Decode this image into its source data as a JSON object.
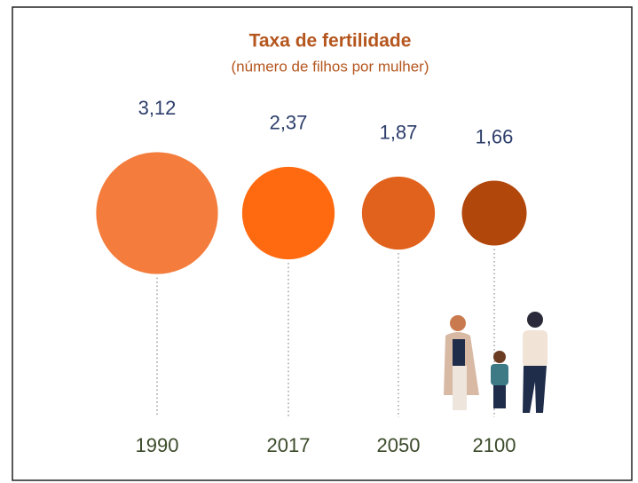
{
  "chart_data": {
    "type": "bubble",
    "title": "Taxa de fertilidade",
    "subtitle": "(número de filhos por mulher)",
    "categories": [
      "1990",
      "2017",
      "2050",
      "2100"
    ],
    "values": [
      3.12,
      2.37,
      1.87,
      1.66
    ],
    "value_labels": [
      "3,12",
      "2,37",
      "1,87",
      "1,66"
    ],
    "colors": [
      "#f47c3c",
      "#ff6a10",
      "#e0621c",
      "#b2470b"
    ]
  }
}
